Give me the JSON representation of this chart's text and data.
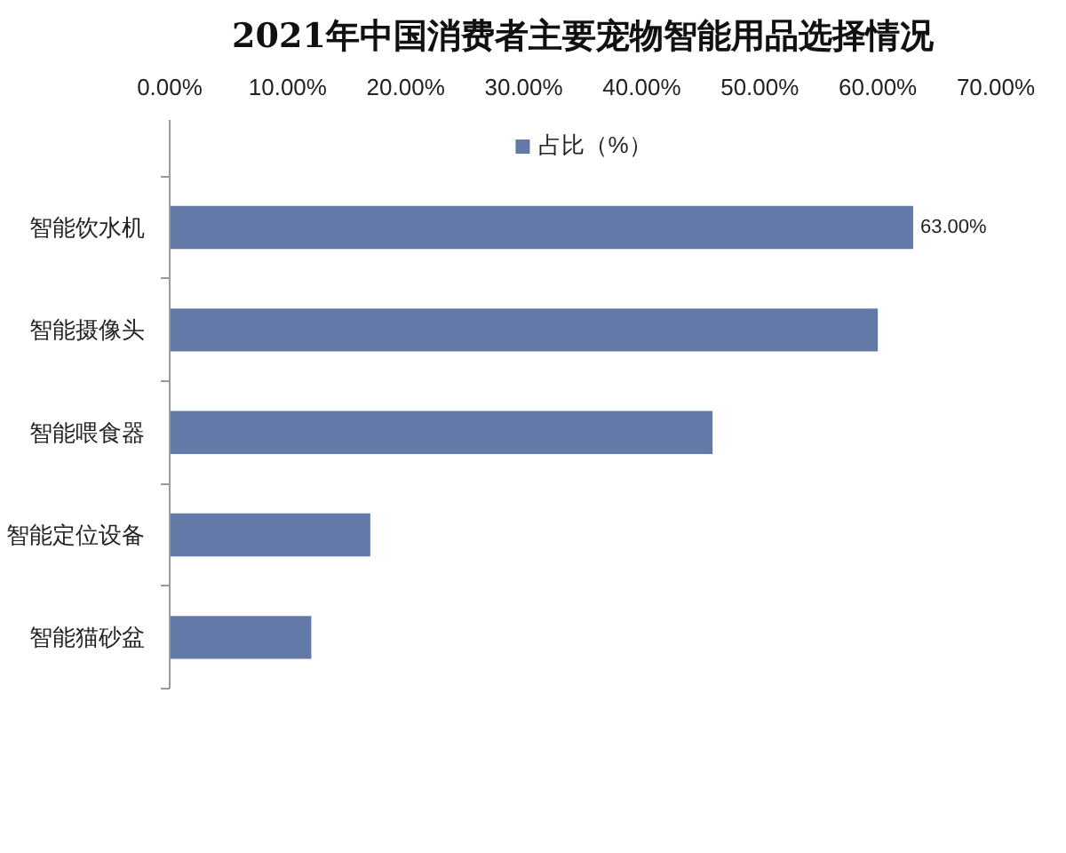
{
  "chart_data": {
    "type": "bar",
    "title": "2021年中国消费者主要宠物智能用品选择情况",
    "orientation": "horizontal",
    "categories": [
      "智能饮水机",
      "智能摄像头",
      "智能喂食器",
      "智能定位设备",
      "智能猫砂盆"
    ],
    "series": [
      {
        "name": "占比（%）",
        "color": "#6379a8",
        "values": [
          63,
          60,
          46,
          17,
          12
        ],
        "value_labels": [
          "63.00%",
          null,
          null,
          null,
          null
        ]
      }
    ],
    "xlim": [
      0,
      70
    ],
    "xticks": [
      {
        "value": 0,
        "label": "0.00%"
      },
      {
        "value": 10,
        "label": "10.00%"
      },
      {
        "value": 20,
        "label": "20.00%"
      },
      {
        "value": 30,
        "label": "30.00%"
      },
      {
        "value": 40,
        "label": "40.00%"
      },
      {
        "value": 50,
        "label": "50.00%"
      },
      {
        "value": 60,
        "label": "60.00%"
      },
      {
        "value": 70,
        "label": "70.00%"
      }
    ],
    "legend": "top"
  }
}
